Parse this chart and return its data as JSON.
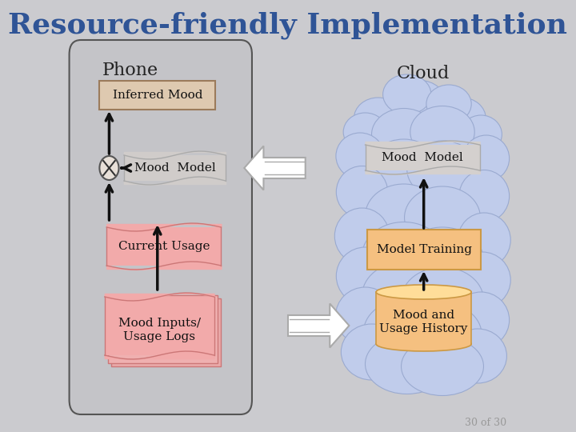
{
  "title": "Resource-friendly Implementation",
  "title_color": "#2F5496",
  "title_fontsize": 26,
  "bg_gradient_top": "#C8C8CC",
  "bg_gradient_bot": "#D8D8DC",
  "bg_color": "#CBCBCF",
  "phone_label": "Phone",
  "cloud_label": "Cloud",
  "phone_bg": "#C4C4C8",
  "phone_border": "#555555",
  "inferred_mood_text": "Inferred Mood",
  "inferred_mood_bg": "#DEC9B0",
  "inferred_mood_border": "#9B7B5B",
  "mood_model_phone_text": "Mood  Model",
  "mood_model_scroll_bg": "#D0CCCA",
  "mood_model_scroll_border": "#AAAAAA",
  "current_usage_text": "Current Usage",
  "current_usage_bg": "#F2AAAA",
  "current_usage_border": "#CC7777",
  "mood_inputs_text": "Mood Inputs/\nUsage Logs",
  "mood_inputs_bg": "#F2AAAA",
  "mood_inputs_border": "#CC7777",
  "cloud_fill": "#C0CCEB",
  "cloud_border": "#9AAAD0",
  "mood_model_cloud_text": "Mood  Model",
  "mood_model_cloud_bg": "#D4D0CE",
  "mood_model_cloud_border": "#AAAAAA",
  "model_training_text": "Model Training",
  "model_training_bg": "#F5C080",
  "model_training_border": "#CC9944",
  "usage_history_text": "Mood and\nUsage History",
  "usage_history_bg": "#F5C080",
  "usage_history_border": "#CC9944",
  "usage_history_top": "#FFDD99",
  "arrow_color": "#CCCCCC",
  "arrow_border": "#AAAAAA",
  "black": "#111111",
  "xor_bg": "#E8E0D8",
  "xor_border": "#555555",
  "footnote": "30 of 30",
  "footnote_color": "#999999",
  "footnote_fontsize": 9
}
